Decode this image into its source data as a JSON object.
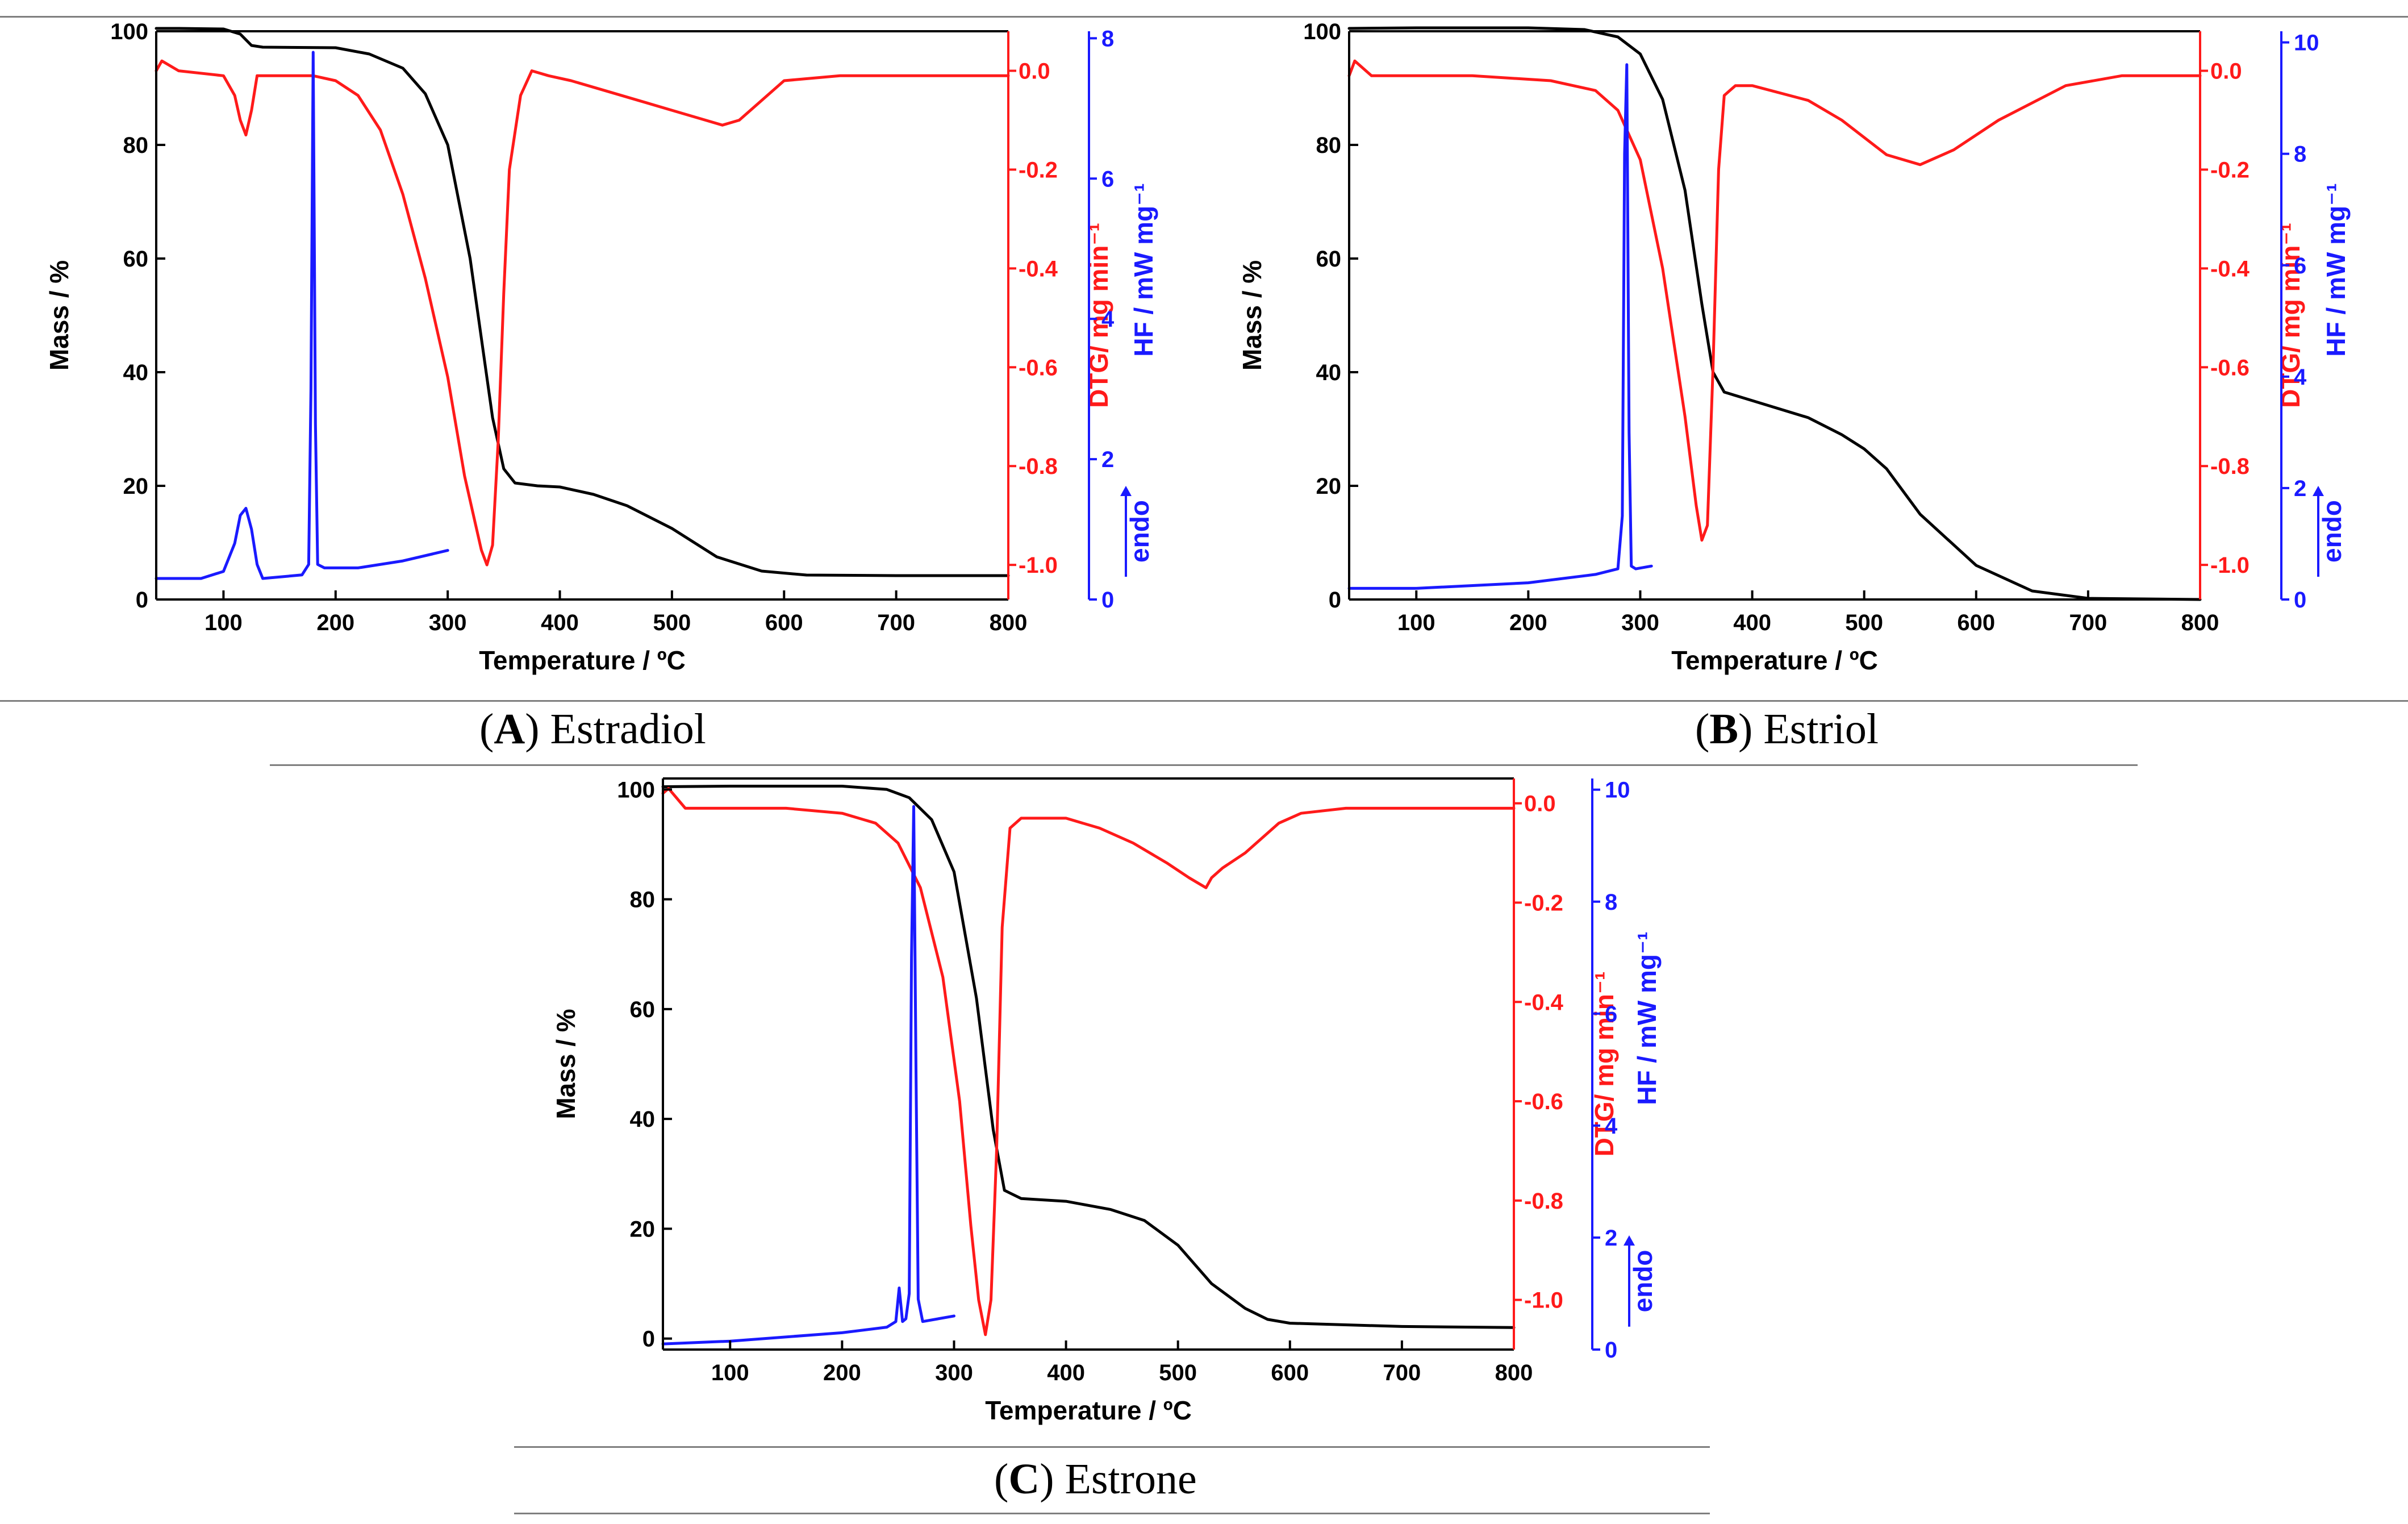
{
  "colors": {
    "mass": "#000000",
    "dtg": "#ff1a1a",
    "hf": "#1a1aff",
    "rule": "#7f7f7f"
  },
  "captions": [
    {
      "letter": "A",
      "name": "Estradiol"
    },
    {
      "letter": "B",
      "name": "Estriol"
    },
    {
      "letter": "C",
      "name": "Estrone"
    }
  ],
  "chart_data": [
    {
      "type": "line",
      "title": "(A) Estradiol",
      "xlabel": "Temperature / ºC",
      "xlim": [
        40,
        800
      ],
      "xticks": [
        100,
        200,
        300,
        400,
        500,
        600,
        700,
        800
      ],
      "axes": {
        "mass": {
          "label": "Mass / %",
          "lim": [
            0,
            100
          ],
          "ticks": [
            0,
            20,
            40,
            60,
            80,
            100
          ],
          "decimals": 0
        },
        "dtg": {
          "label": "DTG/ mg min⁻¹",
          "lim": [
            -1.07,
            0.08
          ],
          "ticks": [
            -1.0,
            -0.8,
            -0.6,
            -0.4,
            -0.2,
            0.0
          ],
          "decimals": 1
        },
        "hf": {
          "label": "HF / mW mg⁻¹",
          "lim": [
            0,
            8.1
          ],
          "ticks": [
            0,
            2,
            4,
            6,
            8
          ],
          "decimals": 0,
          "endo": "endo"
        }
      },
      "series": [
        {
          "name": "Mass",
          "axis": "mass",
          "x": [
            40,
            60,
            100,
            115,
            125,
            135,
            200,
            230,
            260,
            280,
            300,
            320,
            340,
            350,
            360,
            380,
            400,
            430,
            460,
            500,
            540,
            580,
            620,
            700,
            800
          ],
          "y": [
            100.5,
            100.5,
            100.4,
            99.5,
            97.5,
            97.2,
            97.1,
            96,
            93.5,
            89,
            80,
            60,
            32,
            23,
            20.5,
            20,
            19.8,
            18.5,
            16.5,
            12.5,
            7.5,
            5,
            4.3,
            4.2,
            4.2
          ]
        },
        {
          "name": "DTG",
          "axis": "dtg",
          "x": [
            40,
            45,
            60,
            100,
            110,
            115,
            120,
            125,
            130,
            140,
            175,
            180,
            200,
            220,
            240,
            260,
            280,
            300,
            315,
            325,
            330,
            335,
            340,
            345,
            350,
            355,
            365,
            375,
            390,
            410,
            440,
            470,
            500,
            530,
            545,
            560,
            580,
            600,
            650,
            700,
            800
          ],
          "y": [
            0.0,
            0.02,
            0.0,
            -0.01,
            -0.05,
            -0.1,
            -0.13,
            -0.08,
            -0.01,
            -0.01,
            -0.01,
            -0.01,
            -0.02,
            -0.05,
            -0.12,
            -0.25,
            -0.42,
            -0.62,
            -0.82,
            -0.92,
            -0.97,
            -1.0,
            -0.96,
            -0.75,
            -0.45,
            -0.2,
            -0.05,
            0.0,
            -0.01,
            -0.02,
            -0.04,
            -0.06,
            -0.08,
            -0.1,
            -0.11,
            -0.1,
            -0.06,
            -0.02,
            -0.01,
            -0.01,
            -0.01
          ]
        },
        {
          "name": "HF",
          "axis": "hf",
          "x": [
            40,
            80,
            100,
            110,
            115,
            120,
            125,
            130,
            135,
            170,
            176,
            178,
            180,
            182,
            184,
            190,
            220,
            260,
            300
          ],
          "y": [
            0.3,
            0.3,
            0.4,
            0.8,
            1.2,
            1.3,
            1.0,
            0.5,
            0.3,
            0.35,
            0.5,
            3.0,
            7.8,
            2.5,
            0.5,
            0.45,
            0.45,
            0.55,
            0.7
          ]
        }
      ]
    },
    {
      "type": "line",
      "title": "(B) Estriol",
      "xlabel": "Temperature / ºC",
      "xlim": [
        40,
        800
      ],
      "xticks": [
        100,
        200,
        300,
        400,
        500,
        600,
        700,
        800
      ],
      "axes": {
        "mass": {
          "label": "Mass / %",
          "lim": [
            0,
            100
          ],
          "ticks": [
            0,
            20,
            40,
            60,
            80,
            100
          ],
          "decimals": 0
        },
        "dtg": {
          "label": "DTG/ mg min⁻¹",
          "lim": [
            -1.07,
            0.08
          ],
          "ticks": [
            -1.0,
            -0.8,
            -0.6,
            -0.4,
            -0.2,
            0.0
          ],
          "decimals": 1
        },
        "hf": {
          "label": "HF / mW mg⁻¹",
          "lim": [
            0,
            10.2
          ],
          "ticks": [
            0,
            2,
            4,
            6,
            8,
            10
          ],
          "decimals": 0,
          "endo": "endo"
        }
      },
      "series": [
        {
          "name": "Mass",
          "axis": "mass",
          "x": [
            40,
            100,
            200,
            250,
            280,
            300,
            320,
            340,
            355,
            365,
            375,
            400,
            450,
            480,
            500,
            520,
            550,
            600,
            650,
            700,
            800
          ],
          "y": [
            100.5,
            100.6,
            100.6,
            100.3,
            99,
            96,
            88,
            72,
            52,
            40,
            36.5,
            35,
            32,
            29,
            26.5,
            23,
            15,
            6,
            1.5,
            0.2,
            0
          ]
        },
        {
          "name": "DTG",
          "axis": "dtg",
          "x": [
            40,
            45,
            60,
            150,
            220,
            260,
            280,
            300,
            320,
            340,
            350,
            355,
            360,
            365,
            370,
            375,
            385,
            400,
            450,
            480,
            520,
            550,
            580,
            620,
            680,
            730,
            800
          ],
          "y": [
            -0.01,
            0.02,
            -0.01,
            -0.01,
            -0.02,
            -0.04,
            -0.08,
            -0.18,
            -0.4,
            -0.7,
            -0.88,
            -0.95,
            -0.92,
            -0.6,
            -0.2,
            -0.05,
            -0.03,
            -0.03,
            -0.06,
            -0.1,
            -0.17,
            -0.19,
            -0.16,
            -0.1,
            -0.03,
            -0.01,
            -0.01
          ]
        },
        {
          "name": "HF",
          "axis": "hf",
          "x": [
            40,
            100,
            200,
            260,
            280,
            284,
            286,
            288,
            290,
            292,
            296,
            310
          ],
          "y": [
            0.2,
            0.2,
            0.3,
            0.45,
            0.55,
            1.5,
            8.0,
            9.6,
            3.0,
            0.6,
            0.55,
            0.6
          ]
        }
      ]
    },
    {
      "type": "line",
      "title": "(C) Estrone",
      "xlabel": "Temperature / ºC",
      "xlim": [
        40,
        800
      ],
      "xticks": [
        100,
        200,
        300,
        400,
        500,
        600,
        700,
        800
      ],
      "axes": {
        "mass": {
          "label": "Mass / %",
          "lim": [
            -2,
            102
          ],
          "ticks": [
            0,
            20,
            40,
            60,
            80,
            100
          ],
          "decimals": 0
        },
        "dtg": {
          "label": "DTG/ mg min⁻¹",
          "lim": [
            -1.1,
            0.05
          ],
          "ticks": [
            -1.0,
            -0.8,
            -0.6,
            -0.4,
            -0.2,
            0.0
          ],
          "decimals": 1
        },
        "hf": {
          "label": "HF / mW mg⁻¹",
          "lim": [
            0,
            10.2
          ],
          "ticks": [
            0,
            2,
            4,
            6,
            8,
            10
          ],
          "decimals": 0,
          "endo": "endo"
        }
      },
      "series": [
        {
          "name": "Mass",
          "axis": "mass",
          "x": [
            40,
            100,
            200,
            240,
            260,
            280,
            300,
            320,
            335,
            345,
            360,
            400,
            440,
            470,
            500,
            530,
            560,
            580,
            600,
            700,
            800
          ],
          "y": [
            100.5,
            100.6,
            100.6,
            100,
            98.5,
            94.5,
            85,
            62,
            38,
            27,
            25.5,
            25,
            23.5,
            21.5,
            17,
            10,
            5.5,
            3.5,
            2.8,
            2.2,
            2
          ]
        },
        {
          "name": "DTG",
          "axis": "dtg",
          "x": [
            40,
            45,
            60,
            150,
            200,
            230,
            250,
            270,
            290,
            305,
            315,
            322,
            328,
            333,
            338,
            343,
            350,
            360,
            400,
            430,
            460,
            490,
            510,
            525,
            530,
            540,
            560,
            590,
            610,
            650,
            700,
            800
          ],
          "y": [
            0.02,
            0.03,
            -0.01,
            -0.01,
            -0.02,
            -0.04,
            -0.08,
            -0.17,
            -0.35,
            -0.6,
            -0.85,
            -1.0,
            -1.07,
            -1.0,
            -0.7,
            -0.25,
            -0.05,
            -0.03,
            -0.03,
            -0.05,
            -0.08,
            -0.12,
            -0.15,
            -0.17,
            -0.15,
            -0.13,
            -0.1,
            -0.04,
            -0.02,
            -0.01,
            -0.01,
            -0.01
          ]
        },
        {
          "name": "HF",
          "axis": "hf",
          "x": [
            40,
            100,
            200,
            240,
            248,
            251,
            254,
            257,
            260,
            262,
            264,
            266,
            268,
            272,
            300
          ],
          "y": [
            0.1,
            0.15,
            0.3,
            0.4,
            0.5,
            1.1,
            0.5,
            0.55,
            1.0,
            7.0,
            9.7,
            5.0,
            0.9,
            0.5,
            0.6
          ]
        }
      ]
    }
  ]
}
